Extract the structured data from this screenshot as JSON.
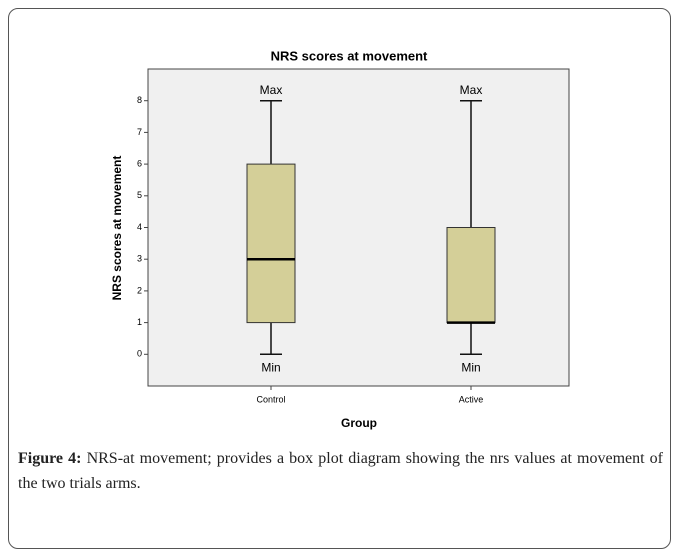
{
  "chart_data": {
    "type": "box",
    "title": "NRS scores at movement",
    "xlabel": "Group",
    "ylabel": "NRS scores at movement",
    "categories": [
      "Control",
      "Active"
    ],
    "boxes": [
      {
        "min": 0,
        "q1": 1,
        "median": 3,
        "q3": 6,
        "max": 8
      },
      {
        "min": 0,
        "q1": 1,
        "median": 1,
        "q3": 4,
        "max": 8
      }
    ],
    "max_label": "Max",
    "min_label": "Min",
    "color": "#d4cf98",
    "ylim": [
      -1,
      9
    ],
    "yticks": [
      0,
      1,
      2,
      3,
      4,
      5,
      6,
      7,
      8
    ]
  },
  "caption": {
    "label": "Figure 4:",
    "text": "NRS-at movement; provides a box plot diagram showing the nrs values at movement of the two trials arms."
  }
}
